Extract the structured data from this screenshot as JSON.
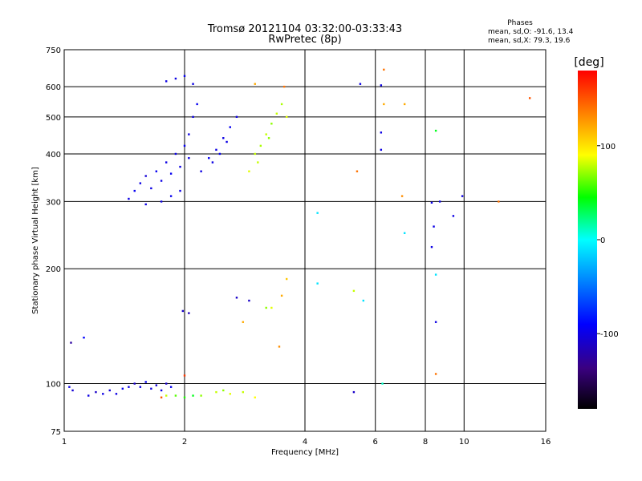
{
  "chart_data": {
    "type": "scatter",
    "title": "Tromsø 20121104 03:32:00-03:33:43",
    "subtitle": "RwPretec (8p)",
    "xlabel": "Frequency [MHz]",
    "ylabel": "Stationary phase Virtual Height [km]",
    "x_scale": "log",
    "y_scale": "log",
    "xlim": [
      1,
      16
    ],
    "ylim": [
      75,
      750
    ],
    "x_ticks": [
      1,
      2,
      4,
      6,
      8,
      10,
      16
    ],
    "x_tick_labels": [
      "1",
      "2",
      "4",
      "6",
      "8",
      "10",
      "16"
    ],
    "y_ticks": [
      75,
      100,
      200,
      300,
      400,
      500,
      600,
      750
    ],
    "y_tick_labels": [
      "75",
      "100",
      "200",
      "300",
      "400",
      "500",
      "600",
      "750"
    ],
    "grid": true,
    "phase_info": {
      "title": "Phases",
      "line_o": "mean, sd,O: -91.6, 13.4",
      "line_x": "mean, sd,X:  79.3, 19.6"
    },
    "colorbar": {
      "label": "[deg]",
      "range": [
        -180,
        180
      ],
      "tick_values": [
        100,
        0,
        -100
      ],
      "tick_labels": [
        "100",
        "0",
        "-100"
      ]
    },
    "series": [
      {
        "points": [
          [
            1.03,
            98,
            -100
          ],
          [
            1.05,
            96,
            -105
          ],
          [
            1.15,
            93,
            -100
          ],
          [
            1.2,
            95,
            -110
          ],
          [
            1.25,
            94,
            -100
          ],
          [
            1.3,
            96,
            -105
          ],
          [
            1.35,
            94,
            -100
          ],
          [
            1.4,
            97,
            -95
          ],
          [
            1.45,
            98,
            -100
          ],
          [
            1.5,
            100,
            -110
          ],
          [
            1.55,
            98,
            -100
          ],
          [
            1.6,
            101,
            -95
          ],
          [
            1.65,
            97,
            -100
          ],
          [
            1.7,
            99,
            -105
          ],
          [
            1.75,
            96,
            -100
          ],
          [
            1.8,
            100,
            -110
          ],
          [
            1.85,
            98,
            -95
          ],
          [
            1.04,
            128,
            -125
          ],
          [
            1.12,
            132,
            -90
          ],
          [
            1.45,
            305,
            -100
          ],
          [
            1.5,
            320,
            -95
          ],
          [
            1.55,
            335,
            -100
          ],
          [
            1.6,
            350,
            -105
          ],
          [
            1.65,
            325,
            -100
          ],
          [
            1.7,
            360,
            -95
          ],
          [
            1.75,
            340,
            -100
          ],
          [
            1.8,
            380,
            -100
          ],
          [
            1.85,
            355,
            -95
          ],
          [
            1.9,
            400,
            -100
          ],
          [
            1.95,
            370,
            -100
          ],
          [
            2.0,
            420,
            -95
          ],
          [
            2.05,
            450,
            -100
          ],
          [
            2.1,
            500,
            -100
          ],
          [
            2.15,
            540,
            -95
          ],
          [
            2.05,
            390,
            -100
          ],
          [
            1.95,
            320,
            -100
          ],
          [
            1.85,
            310,
            -95
          ],
          [
            1.75,
            300,
            -100
          ],
          [
            1.6,
            295,
            -100
          ],
          [
            2.2,
            360,
            -100
          ],
          [
            2.3,
            390,
            -95
          ],
          [
            2.4,
            410,
            -100
          ],
          [
            2.5,
            440,
            -100
          ],
          [
            2.6,
            470,
            -95
          ],
          [
            2.7,
            500,
            -100
          ],
          [
            2.55,
            430,
            -100
          ],
          [
            2.45,
            400,
            -95
          ],
          [
            2.35,
            380,
            -100
          ],
          [
            1.8,
            620,
            -100
          ],
          [
            1.9,
            630,
            -100
          ],
          [
            2.0,
            640,
            -95
          ],
          [
            2.1,
            610,
            -100
          ],
          [
            1.98,
            155,
            -110
          ],
          [
            2.05,
            153,
            -115
          ],
          [
            2.7,
            168,
            -110
          ],
          [
            2.9,
            165,
            -110
          ]
        ]
      },
      {
        "points": [
          [
            1.8,
            93,
            80
          ],
          [
            1.9,
            93,
            60
          ],
          [
            2.0,
            92,
            50
          ],
          [
            2.1,
            93,
            40
          ],
          [
            2.2,
            93,
            70
          ],
          [
            2.4,
            95,
            80
          ],
          [
            2.5,
            96,
            70
          ],
          [
            2.6,
            94,
            85
          ],
          [
            2.8,
            95,
            80
          ],
          [
            3.0,
            92,
            90
          ],
          [
            2.9,
            360,
            85
          ],
          [
            3.0,
            400,
            80
          ],
          [
            3.1,
            420,
            75
          ],
          [
            3.2,
            450,
            80
          ],
          [
            3.3,
            480,
            70
          ],
          [
            3.4,
            510,
            80
          ],
          [
            3.5,
            540,
            75
          ],
          [
            3.6,
            500,
            85
          ],
          [
            3.05,
            380,
            80
          ],
          [
            3.25,
            440,
            70
          ],
          [
            3.0,
            610,
            120
          ],
          [
            3.2,
            158,
            70
          ],
          [
            3.3,
            158,
            85
          ],
          [
            3.5,
            170,
            120
          ],
          [
            3.45,
            125,
            130
          ],
          [
            2.8,
            145,
            120
          ],
          [
            3.6,
            188,
            110
          ],
          [
            3.55,
            600,
            140
          ],
          [
            2.0,
            105,
            160
          ],
          [
            1.75,
            92,
            150
          ]
        ]
      },
      {
        "points": [
          [
            4.3,
            280,
            -10
          ],
          [
            4.3,
            183,
            -10
          ],
          [
            5.3,
            175,
            80
          ],
          [
            5.6,
            165,
            -10
          ],
          [
            5.3,
            95,
            -110
          ],
          [
            5.5,
            610,
            -100
          ],
          [
            6.2,
            605,
            -100
          ],
          [
            6.2,
            455,
            -100
          ],
          [
            6.2,
            410,
            -100
          ],
          [
            6.25,
            100,
            10
          ],
          [
            6.3,
            665,
            140
          ],
          [
            6.3,
            540,
            120
          ],
          [
            7.0,
            310,
            130
          ],
          [
            7.1,
            540,
            120
          ],
          [
            7.1,
            248,
            -10
          ],
          [
            5.4,
            360,
            140
          ],
          [
            8.3,
            298,
            -100
          ],
          [
            8.4,
            258,
            -100
          ],
          [
            8.3,
            228,
            -100
          ],
          [
            8.7,
            300,
            -100
          ],
          [
            8.5,
            460,
            40
          ],
          [
            8.5,
            193,
            -10
          ],
          [
            8.5,
            145,
            -100
          ],
          [
            8.5,
            106,
            140
          ],
          [
            9.4,
            275,
            -100
          ],
          [
            9.9,
            310,
            -100
          ],
          [
            12.2,
            300,
            140
          ],
          [
            14.6,
            560,
            150
          ]
        ]
      }
    ]
  }
}
